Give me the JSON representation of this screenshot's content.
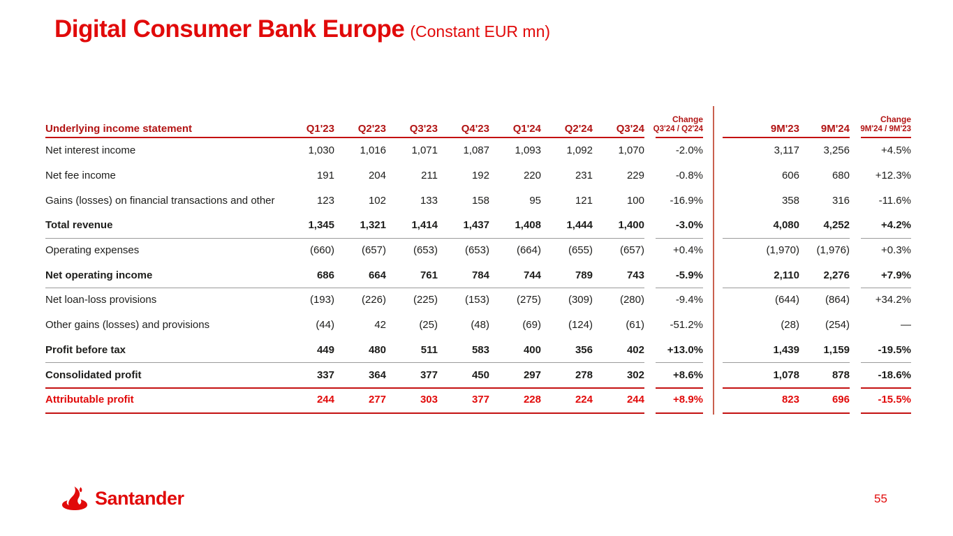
{
  "title": {
    "main": "Digital Consumer Bank Europe",
    "sub": "(Constant EUR mn)"
  },
  "table": {
    "label_header": "Underlying income statement",
    "quarter_headers": [
      "Q1'23",
      "Q2'23",
      "Q3'23",
      "Q4'23",
      "Q1'24",
      "Q2'24",
      "Q3'24"
    ],
    "change_quarter_header": {
      "label": "Change",
      "sub": "Q3'24 / Q2'24"
    },
    "nine_month_headers": [
      "9M'23",
      "9M'24"
    ],
    "change_nine_month_header": {
      "label": "Change",
      "sub": "9M'24 / 9M'23"
    },
    "rows": [
      {
        "label": "Net interest income",
        "values": [
          "1,030",
          "1,016",
          "1,071",
          "1,087",
          "1,093",
          "1,092",
          "1,070"
        ],
        "change_q": "-2.0%",
        "nine_m": [
          "3,117",
          "3,256"
        ],
        "change_9m": "+4.5%",
        "style": "normal"
      },
      {
        "label": "Net fee income",
        "values": [
          "191",
          "204",
          "211",
          "192",
          "220",
          "231",
          "229"
        ],
        "change_q": "-0.8%",
        "nine_m": [
          "606",
          "680"
        ],
        "change_9m": "+12.3%",
        "style": "normal"
      },
      {
        "label": "Gains (losses) on financial transactions and other",
        "values": [
          "123",
          "102",
          "133",
          "158",
          "95",
          "121",
          "100"
        ],
        "change_q": "-16.9%",
        "nine_m": [
          "358",
          "316"
        ],
        "change_9m": "-11.6%",
        "style": "normal"
      },
      {
        "label": "Total revenue",
        "values": [
          "1,345",
          "1,321",
          "1,414",
          "1,437",
          "1,408",
          "1,444",
          "1,400"
        ],
        "change_q": "-3.0%",
        "nine_m": [
          "4,080",
          "4,252"
        ],
        "change_9m": "+4.2%",
        "style": "bold"
      },
      {
        "label": "Operating expenses",
        "values": [
          "(660)",
          "(657)",
          "(653)",
          "(653)",
          "(664)",
          "(655)",
          "(657)"
        ],
        "change_q": "+0.4%",
        "nine_m": [
          "(1,970)",
          "(1,976)"
        ],
        "change_9m": "+0.3%",
        "style": "normal"
      },
      {
        "label": "Net operating income",
        "values": [
          "686",
          "664",
          "761",
          "784",
          "744",
          "789",
          "743"
        ],
        "change_q": "-5.9%",
        "nine_m": [
          "2,110",
          "2,276"
        ],
        "change_9m": "+7.9%",
        "style": "bold"
      },
      {
        "label": "Net loan-loss provisions",
        "values": [
          "(193)",
          "(226)",
          "(225)",
          "(153)",
          "(275)",
          "(309)",
          "(280)"
        ],
        "change_q": "-9.4%",
        "nine_m": [
          "(644)",
          "(864)"
        ],
        "change_9m": "+34.2%",
        "style": "normal"
      },
      {
        "label": "Other gains (losses) and provisions",
        "values": [
          "(44)",
          "42",
          "(25)",
          "(48)",
          "(69)",
          "(124)",
          "(61)"
        ],
        "change_q": "-51.2%",
        "nine_m": [
          "(28)",
          "(254)"
        ],
        "change_9m": "—",
        "style": "normal"
      },
      {
        "label": "Profit before tax",
        "values": [
          "449",
          "480",
          "511",
          "583",
          "400",
          "356",
          "402"
        ],
        "change_q": "+13.0%",
        "nine_m": [
          "1,439",
          "1,159"
        ],
        "change_9m": "-19.5%",
        "style": "bold"
      },
      {
        "label": "Consolidated profit",
        "values": [
          "337",
          "364",
          "377",
          "450",
          "297",
          "278",
          "302"
        ],
        "change_q": "+8.6%",
        "nine_m": [
          "1,078",
          "878"
        ],
        "change_9m": "-18.6%",
        "style": "bold"
      },
      {
        "label": "Attributable profit",
        "values": [
          "244",
          "277",
          "303",
          "377",
          "228",
          "224",
          "244"
        ],
        "change_q": "+8.9%",
        "nine_m": [
          "823",
          "696"
        ],
        "change_9m": "-15.5%",
        "style": "boldred"
      }
    ]
  },
  "footer": {
    "logo_text": "Santander",
    "page_number": "55"
  },
  "colors": {
    "brand_red": "#e10a0a",
    "header_red": "#b21414",
    "line_red": "#c41111",
    "gray_line": "#9a9a9a",
    "divider_red": "#c9604f",
    "text_dark": "#1d1d1b"
  }
}
